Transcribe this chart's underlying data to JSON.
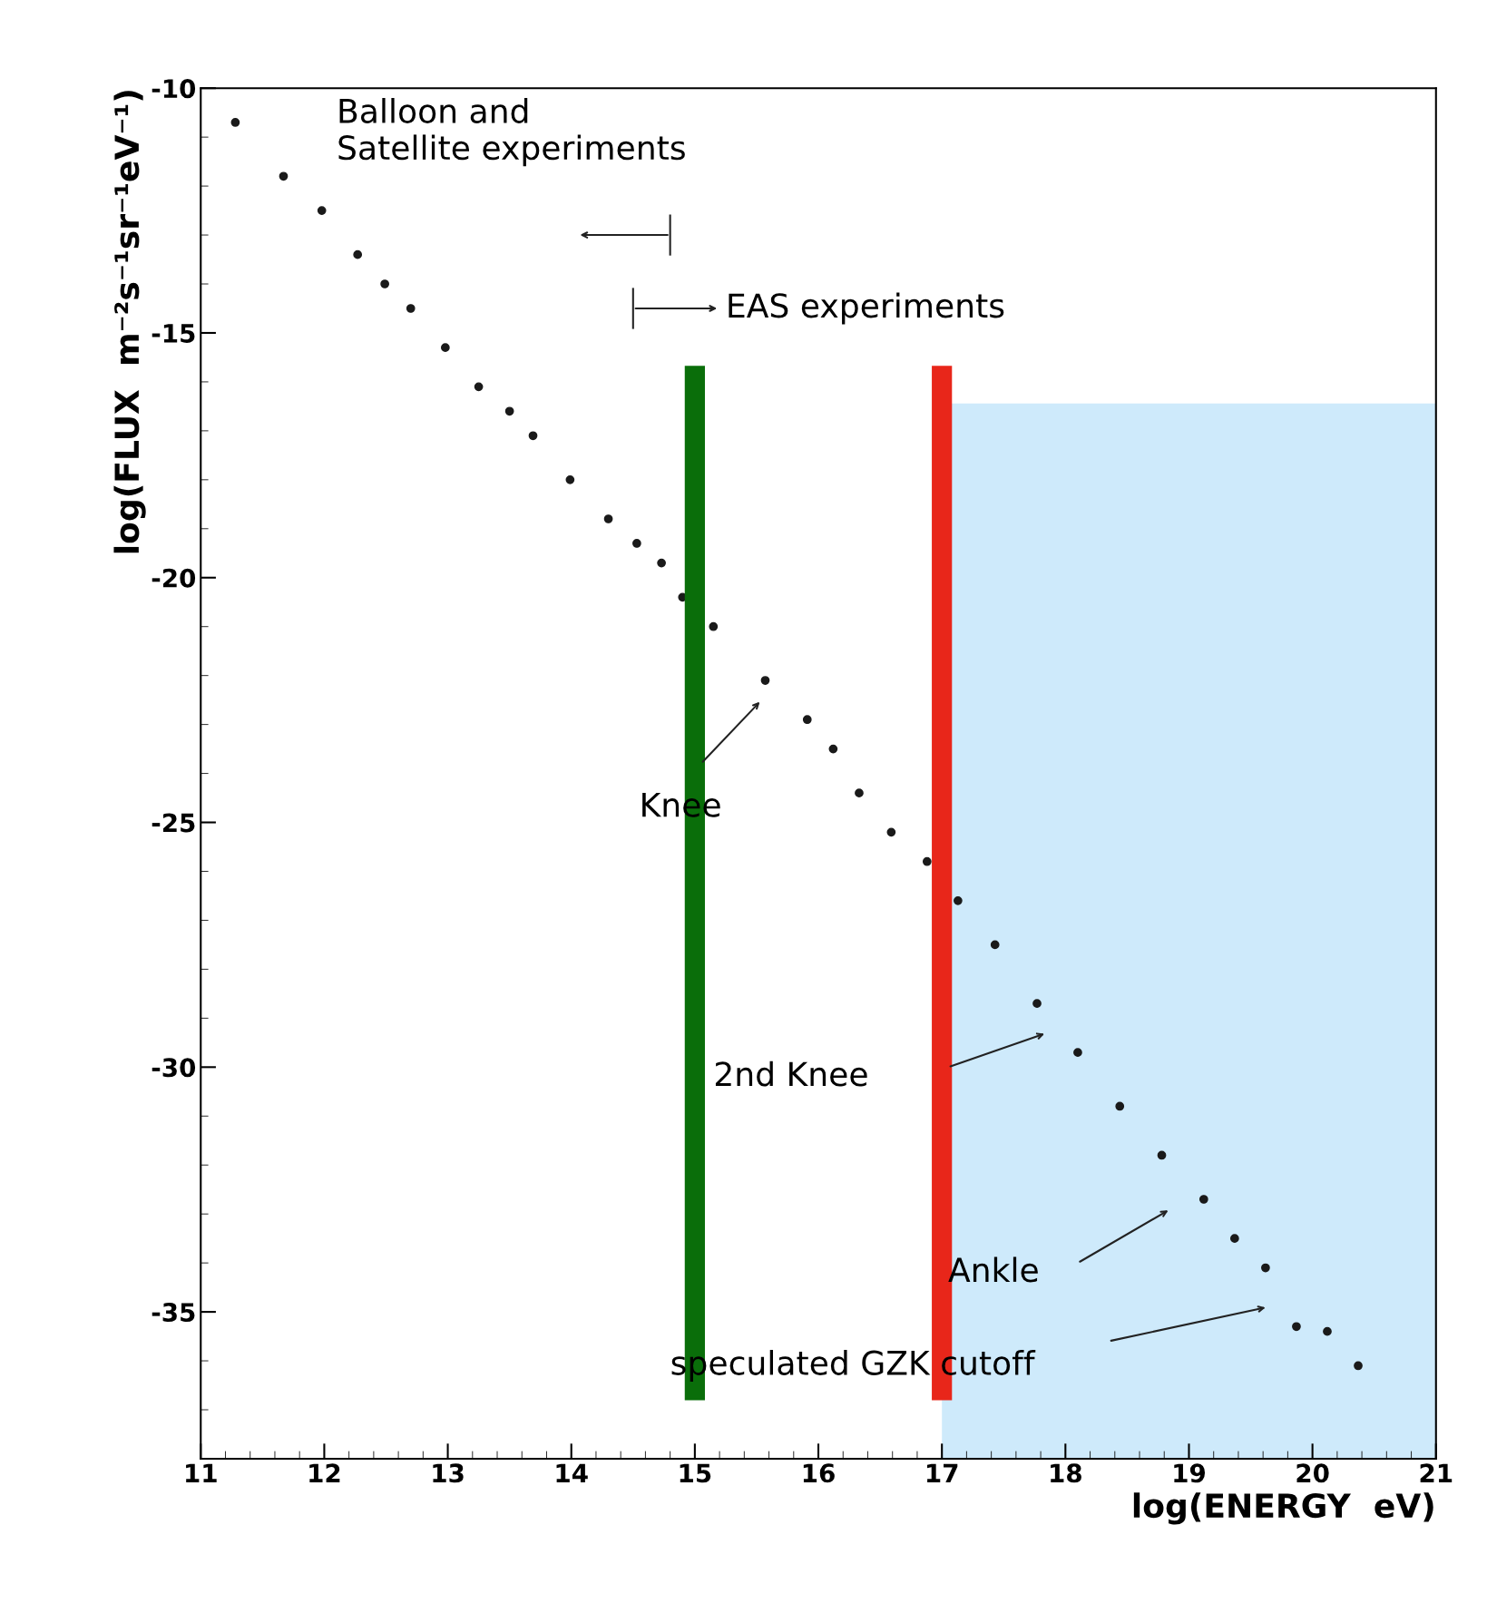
{
  "chart_data": {
    "type": "scatter",
    "xlabel": "log(ENERGY  eV)",
    "ylabel": "log(FLUX  m⁻²s⁻¹sr⁻¹eV⁻¹)",
    "x": [
      11.28,
      11.67,
      11.98,
      12.27,
      12.49,
      12.7,
      12.98,
      13.25,
      13.5,
      13.69,
      13.99,
      14.3,
      14.53,
      14.73,
      14.9,
      15.15,
      15.57,
      15.91,
      16.12,
      16.33,
      16.59,
      16.88,
      17.13,
      17.43,
      17.77,
      18.1,
      18.44,
      18.78,
      19.12,
      19.37,
      19.62,
      19.87,
      20.12,
      20.37
    ],
    "series": [
      {
        "color": "#1a1a1a",
        "values": [
          -10.7,
          -11.8,
          -12.5,
          -13.4,
          -14.0,
          -14.5,
          -15.3,
          -16.1,
          -16.6,
          -17.1,
          -18.0,
          -18.8,
          -19.3,
          -19.7,
          -20.4,
          -21.0,
          -22.1,
          -22.9,
          -23.5,
          -24.4,
          -25.2,
          -25.8,
          -26.6,
          -27.5,
          -28.7,
          -29.7,
          -30.8,
          -31.8,
          -32.7,
          -33.5,
          -34.1,
          -35.3,
          -35.4,
          -36.1
        ]
      }
    ],
    "marker": "circle",
    "xlim": [
      11,
      21
    ],
    "ylim": [
      -38,
      -10
    ],
    "xticks": [
      11,
      12,
      13,
      14,
      15,
      16,
      17,
      18,
      19,
      20,
      21
    ],
    "yticks": [
      -10,
      -15,
      -20,
      -25,
      -30,
      -35
    ],
    "grid": false,
    "annotations": [
      "Balloon and\nSatellite experiments",
      "EAS experiments",
      "Knee",
      "2nd Knee",
      "Ankle",
      "speculated GZK cutoff"
    ],
    "ref_lines": [
      {
        "axis": "x",
        "value": 15,
        "color": "#0a6e0a"
      },
      {
        "axis": "x",
        "value": 17,
        "color": "#e8261a"
      }
    ],
    "bands": [
      {
        "axis": "x",
        "from": 17,
        "to": 21,
        "color": "#a6d9f7"
      }
    ]
  }
}
